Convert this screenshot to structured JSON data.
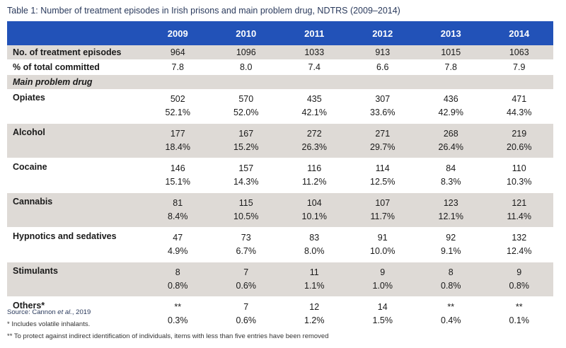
{
  "caption": "Table 1: Number of treatment episodes in Irish prisons and main problem drug, NDTRS (2009–2014)",
  "header": {
    "blank": "",
    "years": [
      "2009",
      "2010",
      "2011",
      "2012",
      "2013",
      "2014"
    ]
  },
  "summary_rows": [
    {
      "label": "No. of treatment episodes",
      "values": [
        "964",
        "1096",
        "1033",
        "913",
        "1015",
        "1063"
      ]
    },
    {
      "label": "% of total committed",
      "values": [
        "7.8",
        "8.0",
        "7.4",
        "6.6",
        "7.8",
        "7.9"
      ]
    }
  ],
  "subheading": "Main problem drug",
  "drug_rows": [
    {
      "label": "Opiates",
      "counts": [
        "502",
        "570",
        "435",
        "307",
        "436",
        "471"
      ],
      "percents": [
        "52.1%",
        "52.0%",
        "42.1%",
        "33.6%",
        "42.9%",
        "44.3%"
      ]
    },
    {
      "label": "Alcohol",
      "counts": [
        "177",
        "167",
        "272",
        "271",
        "268",
        "219"
      ],
      "percents": [
        "18.4%",
        "15.2%",
        "26.3%",
        "29.7%",
        "26.4%",
        "20.6%"
      ]
    },
    {
      "label": "Cocaine",
      "counts": [
        "146",
        "157",
        "116",
        "114",
        "84",
        "110"
      ],
      "percents": [
        "15.1%",
        "14.3%",
        "11.2%",
        "12.5%",
        "8.3%",
        "10.3%"
      ]
    },
    {
      "label": "Cannabis",
      "counts": [
        "81",
        "115",
        "104",
        "107",
        "123",
        "121"
      ],
      "percents": [
        "8.4%",
        "10.5%",
        "10.1%",
        "11.7%",
        "12.1%",
        "11.4%"
      ]
    },
    {
      "label": "Hypnotics and sedatives",
      "counts": [
        "47",
        "73",
        "83",
        "91",
        "92",
        "132"
      ],
      "percents": [
        "4.9%",
        "6.7%",
        "8.0%",
        "10.0%",
        "9.1%",
        "12.4%"
      ]
    },
    {
      "label": "Stimulants",
      "counts": [
        "8",
        "7",
        "11",
        "9",
        "8",
        "9"
      ],
      "percents": [
        "0.8%",
        "0.6%",
        "1.1%",
        "1.0%",
        "0.8%",
        "0.8%"
      ]
    },
    {
      "label": "Others*",
      "counts": [
        "**",
        "7",
        "12",
        "14",
        "**",
        "**"
      ],
      "percents": [
        "0.3%",
        "0.6%",
        "1.2%",
        "1.5%",
        "0.4%",
        "0.1%"
      ]
    }
  ],
  "footnotes": {
    "source_prefix": "Source: Cannon ",
    "source_italic": "et al.",
    "source_suffix": ", 2019",
    "note1": "* Includes volatile inhalants.",
    "note2": "** To protect against indirect identification of individuals, items with less than five entries have been removed"
  },
  "colors": {
    "header_bg": "#2252b8",
    "shaded_row": "#dedad6",
    "caption_text": "#2a3a5c"
  }
}
